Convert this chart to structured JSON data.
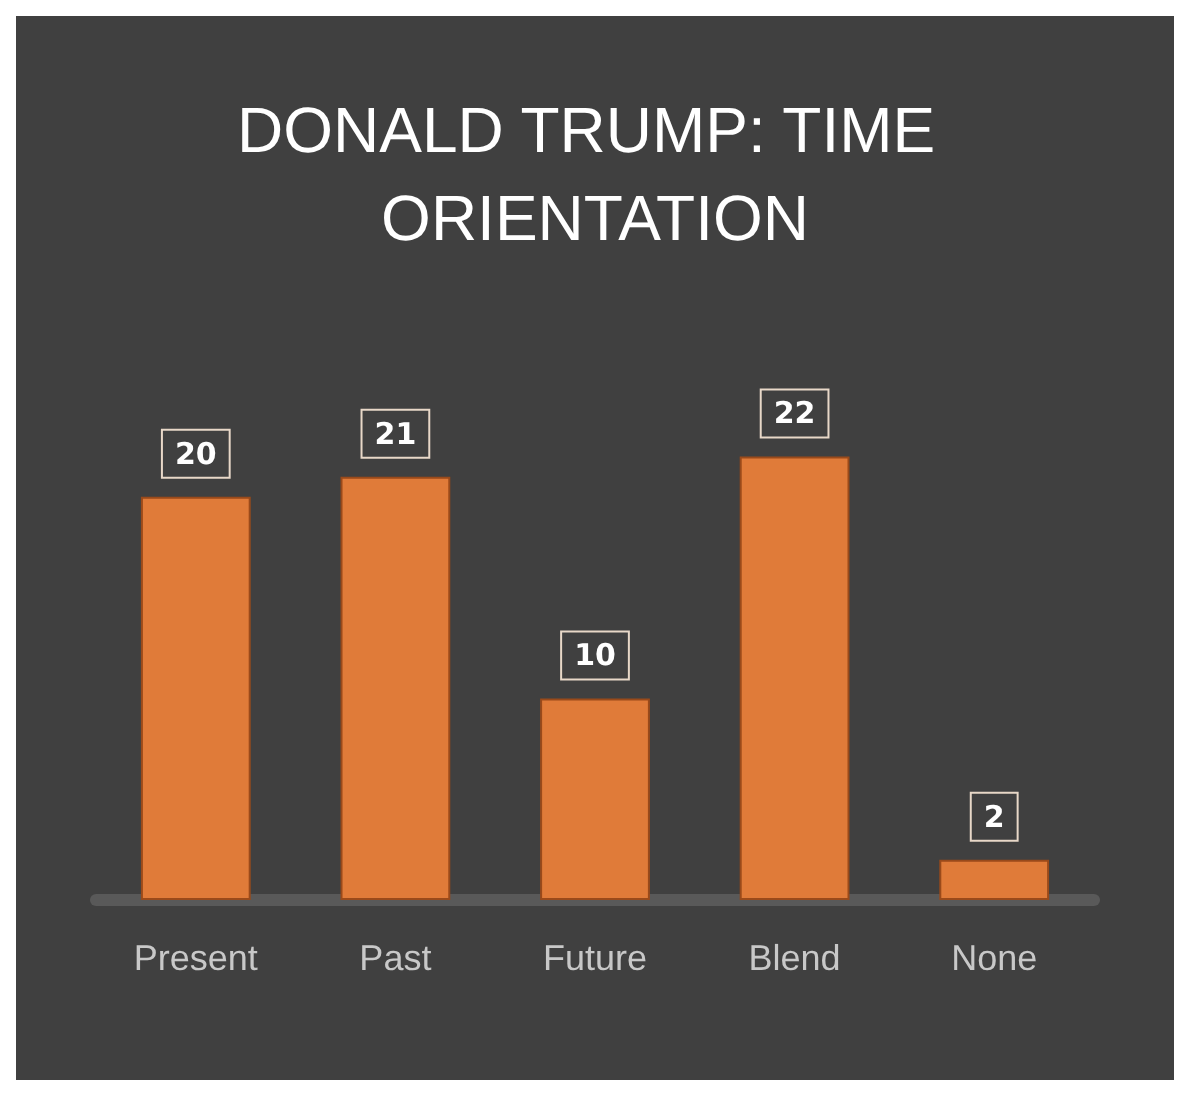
{
  "chart_data": {
    "type": "bar",
    "title": "DONALD TRUMP: TIME ORIENTATION",
    "categories": [
      "Present",
      "Past",
      "Future",
      "Blend",
      "None"
    ],
    "values": [
      20,
      21,
      10,
      22,
      2
    ],
    "color": "#e07b39",
    "data_labels": true
  }
}
